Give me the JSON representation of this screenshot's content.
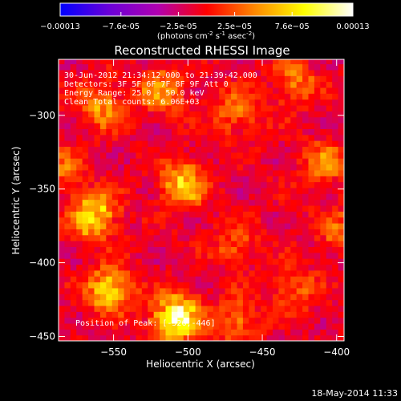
{
  "colorbar": {
    "tick_labels": [
      "-0.00013",
      "-7.6e-05",
      "-2.5e-05",
      "2.5e-05",
      "7.6e-05",
      "0.00013"
    ],
    "units_text": "(photons cm",
    "units_sup1": "-2",
    "units_mid": " s",
    "units_sup2": "-1",
    "units_mid2": " asec",
    "units_sup3": "-2",
    "units_end": ")",
    "colors": [
      "#0000ff",
      "#6a00d8",
      "#b000b0",
      "#ff0000",
      "#ff8a00",
      "#ffff00",
      "#ffffff"
    ]
  },
  "plot": {
    "title": "Reconstructed RHESSI Image",
    "info_lines": [
      "30-Jun-2012 21:34:12.000 to 21:39:42.000",
      "Detectors: 3F 5F 6F 7F 8F 9F Att 0",
      "Energy Range: 25.0 - 50.0 keV",
      "Clean     Total counts: 6.06E+03"
    ],
    "peak_text": "Position of Peak: [-526,-446]",
    "footer_timestamp": "18-May-2014 11:33"
  },
  "chart_data": {
    "type": "heatmap",
    "title": "Reconstructed RHESSI Image",
    "xlabel": "Heliocentric X (arcsec)",
    "ylabel": "Heliocentric Y (arcsec)",
    "xlim": [
      -587,
      -395
    ],
    "ylim": [
      -453,
      -262
    ],
    "xticks": [
      -550,
      -500,
      -450,
      -400
    ],
    "yticks": [
      -300,
      -350,
      -400,
      -450
    ],
    "xtick_labels": [
      "−550",
      "−500",
      "−450",
      "−400"
    ],
    "ytick_labels": [
      "−300",
      "−350",
      "−400",
      "−450"
    ],
    "colorbar_range": [
      -0.00013,
      0.00013
    ],
    "colormap": "blue-purple-red-orange-yellow-white",
    "peak_position": [
      -526,
      -446
    ],
    "sources": [
      {
        "x": -505,
        "y": -348,
        "value": 8e-05
      },
      {
        "x": -565,
        "y": -370,
        "value": 9e-05
      },
      {
        "x": -555,
        "y": -420,
        "value": 9e-05
      },
      {
        "x": -510,
        "y": -440,
        "value": 0.00013
      },
      {
        "x": -560,
        "y": -295,
        "value": 6e-05
      },
      {
        "x": -520,
        "y": -285,
        "value": 6e-05
      },
      {
        "x": -470,
        "y": -300,
        "value": 5e-05
      },
      {
        "x": -430,
        "y": -280,
        "value": 5e-05
      },
      {
        "x": -410,
        "y": -335,
        "value": 5e-05
      },
      {
        "x": -400,
        "y": -380,
        "value": 4e-05
      },
      {
        "x": -470,
        "y": -390,
        "value": 4e-05
      },
      {
        "x": -430,
        "y": -420,
        "value": 4e-05
      },
      {
        "x": -470,
        "y": -440,
        "value": 5e-05
      },
      {
        "x": -585,
        "y": -340,
        "value": 4e-05
      }
    ]
  }
}
